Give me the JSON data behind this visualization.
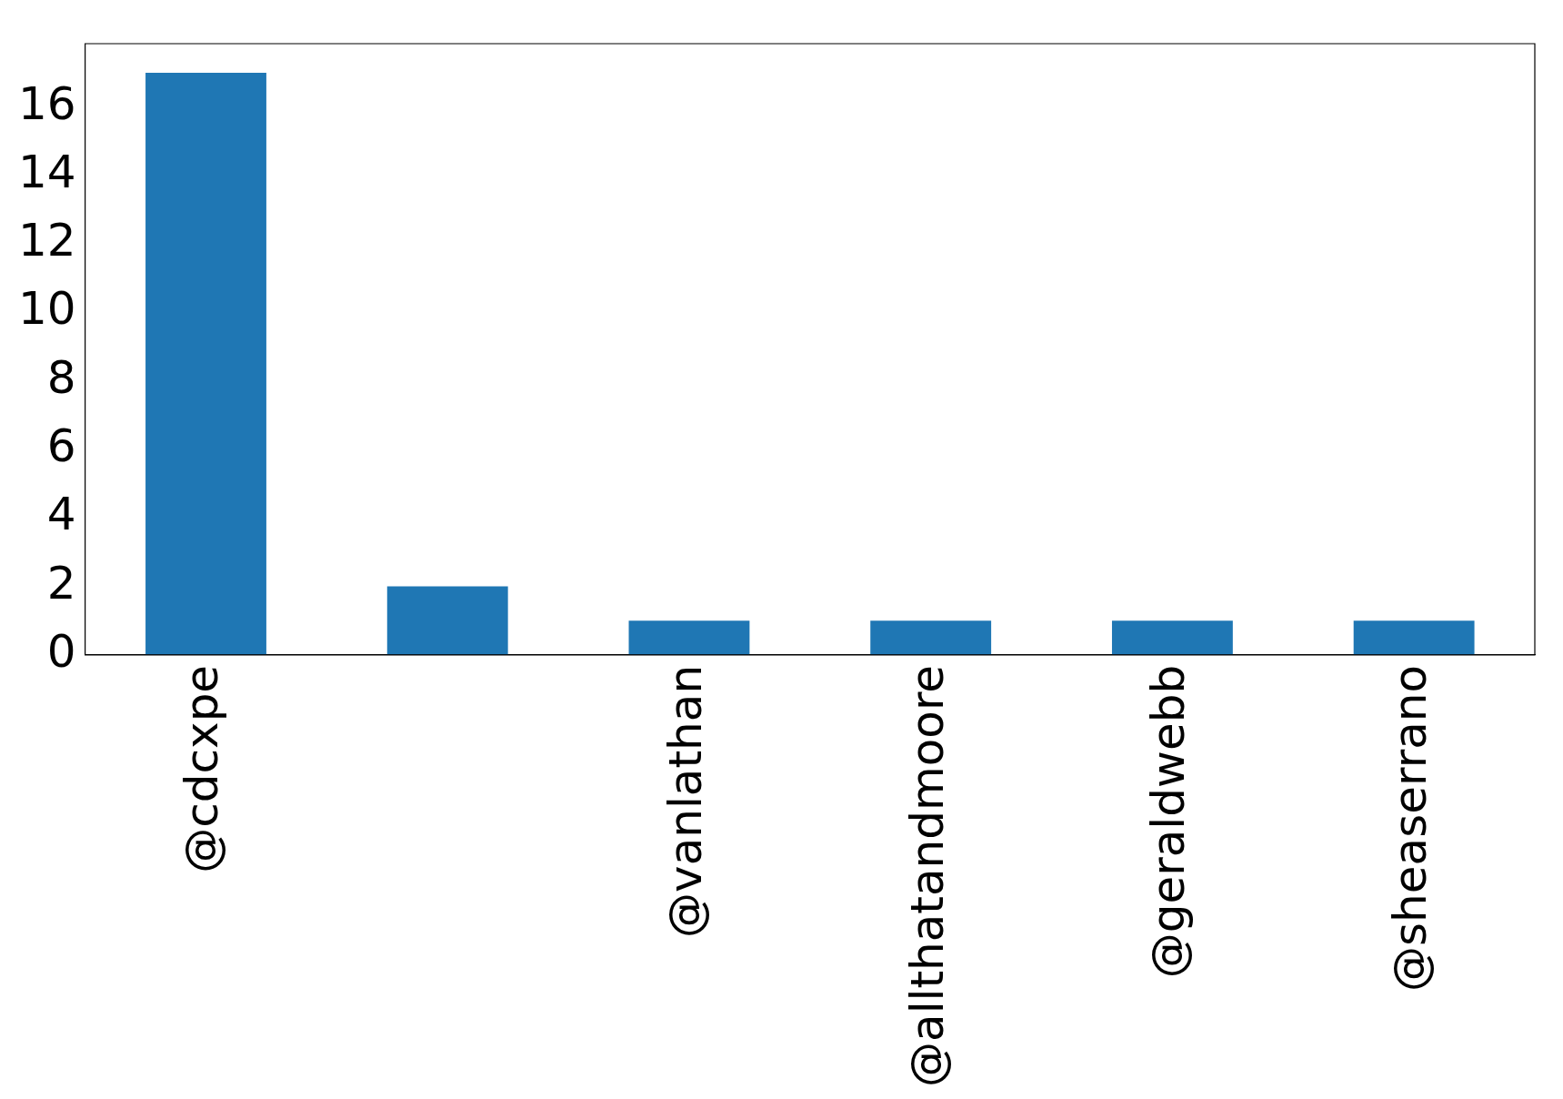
{
  "chart_data": {
    "type": "bar",
    "categories": [
      "@cdcxpe",
      null,
      "@vanlathan",
      "@allthatandmoore",
      "@geraldwebb",
      "@sheaserrano"
    ],
    "values": [
      17,
      2,
      1,
      1,
      1,
      1
    ],
    "color": "#1f77b4",
    "ylim": [
      0,
      17.85
    ],
    "yticks": [
      0,
      2,
      4,
      6,
      8,
      10,
      12,
      14,
      16
    ],
    "grid": false,
    "legend": false
  }
}
